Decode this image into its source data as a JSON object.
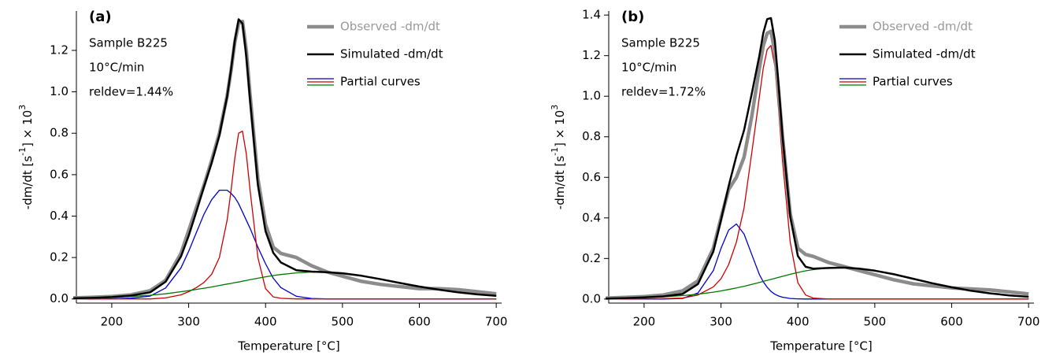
{
  "chart_data": [
    {
      "type": "line",
      "xlabel": "Temperature  [°C]",
      "ylabel": [
        "-dm/dt  [s",
        "-1",
        "]  × 10",
        "3"
      ],
      "annotations": [
        "(a)",
        "Sample B225",
        "10°C/min",
        "reldev=1.44%"
      ],
      "xlim": [
        154,
        707
      ],
      "xticks": [
        200,
        300,
        400,
        500,
        600,
        700
      ],
      "ylim": [
        -0.02,
        1.39
      ],
      "yticks": [
        {
          "value": 0,
          "label": "0.0"
        },
        {
          "value": 0.2,
          "label": "0.2"
        },
        {
          "value": 0.4,
          "label": "0.4"
        },
        {
          "value": 0.6,
          "label": "0.6"
        },
        {
          "value": 0.8,
          "label": "0.8"
        },
        {
          "value": 1.0,
          "label": "1.0"
        },
        {
          "value": 1.2,
          "label": "1.2"
        }
      ],
      "x": [
        150,
        175,
        200,
        225,
        250,
        270,
        290,
        300,
        310,
        320,
        330,
        340,
        350,
        355,
        360,
        365,
        370,
        375,
        380,
        390,
        400,
        410,
        420,
        440,
        460,
        480,
        500,
        525,
        550,
        575,
        600,
        625,
        650,
        675,
        700
      ],
      "series": [
        {
          "name": "Observed -dm/dt",
          "color": "#8c8c8c",
          "values": [
            0.005,
            0.008,
            0.012,
            0.02,
            0.04,
            0.09,
            0.22,
            0.33,
            0.44,
            0.55,
            0.67,
            0.8,
            0.98,
            1.1,
            1.24,
            1.33,
            1.34,
            1.2,
            0.98,
            0.58,
            0.36,
            0.25,
            0.22,
            0.2,
            0.16,
            0.13,
            0.11,
            0.085,
            0.07,
            0.06,
            0.05,
            0.05,
            0.045,
            0.035,
            0.025
          ]
        },
        {
          "name": "Simulated -dm/dt",
          "color": "#000000",
          "values": [
            0.003,
            0.005,
            0.009,
            0.016,
            0.032,
            0.083,
            0.205,
            0.305,
            0.421,
            0.542,
            0.658,
            0.79,
            0.977,
            1.105,
            1.249,
            1.35,
            1.33,
            1.169,
            0.953,
            0.55,
            0.327,
            0.223,
            0.176,
            0.139,
            0.132,
            0.129,
            0.124,
            0.112,
            0.095,
            0.077,
            0.06,
            0.045,
            0.032,
            0.022,
            0.015
          ]
        },
        {
          "name": "Partial curves",
          "components": [
            {
              "color": "#0000cc",
              "values": [
                0,
                0,
                0.001,
                0.004,
                0.014,
                0.053,
                0.15,
                0.23,
                0.32,
                0.41,
                0.48,
                0.525,
                0.525,
                0.51,
                0.49,
                0.46,
                0.42,
                0.38,
                0.34,
                0.25,
                0.17,
                0.1,
                0.055,
                0.013,
                0.002,
                0,
                0,
                0,
                0,
                0,
                0,
                0,
                0,
                0,
                0
              ]
            },
            {
              "color": "#cc0000",
              "values": [
                0,
                0,
                0,
                0,
                0,
                0.005,
                0.02,
                0.035,
                0.055,
                0.08,
                0.12,
                0.2,
                0.38,
                0.52,
                0.68,
                0.8,
                0.81,
                0.7,
                0.52,
                0.2,
                0.05,
                0.01,
                0.003,
                0,
                0,
                0,
                0,
                0,
                0,
                0,
                0,
                0,
                0,
                0,
                0
              ]
            },
            {
              "color": "#007700",
              "values": [
                0.003,
                0.005,
                0.008,
                0.012,
                0.018,
                0.025,
                0.035,
                0.04,
                0.046,
                0.052,
                0.058,
                0.065,
                0.072,
                0.075,
                0.079,
                0.082,
                0.086,
                0.089,
                0.093,
                0.1,
                0.107,
                0.113,
                0.118,
                0.126,
                0.13,
                0.129,
                0.124,
                0.112,
                0.095,
                0.077,
                0.06,
                0.045,
                0.032,
                0.022,
                0.015
              ]
            }
          ]
        }
      ]
    },
    {
      "type": "line",
      "xlabel": "Temperature  [°C]",
      "ylabel": [
        "-dm/dt  [s",
        "-1",
        "]  × 10",
        "3"
      ],
      "annotations": [
        "(b)",
        "Sample B225",
        "10°C/min",
        "reldev=1.72%"
      ],
      "xlim": [
        154,
        707
      ],
      "xticks": [
        200,
        300,
        400,
        500,
        600,
        700
      ],
      "ylim": [
        -0.02,
        1.42
      ],
      "yticks": [
        {
          "value": 0,
          "label": "0.0"
        },
        {
          "value": 0.2,
          "label": "0.2"
        },
        {
          "value": 0.4,
          "label": "0.4"
        },
        {
          "value": 0.6,
          "label": "0.6"
        },
        {
          "value": 0.8,
          "label": "0.8"
        },
        {
          "value": 1.0,
          "label": "1.0"
        },
        {
          "value": 1.2,
          "label": "1.2"
        },
        {
          "value": 1.4,
          "label": "1.4"
        }
      ],
      "x": [
        150,
        175,
        200,
        225,
        250,
        270,
        290,
        300,
        310,
        320,
        330,
        340,
        350,
        355,
        360,
        365,
        370,
        375,
        380,
        390,
        400,
        410,
        420,
        440,
        460,
        480,
        500,
        525,
        550,
        575,
        600,
        625,
        650,
        675,
        700
      ],
      "series": [
        {
          "name": "Observed -dm/dt",
          "color": "#8c8c8c",
          "values": [
            0.005,
            0.008,
            0.012,
            0.02,
            0.04,
            0.09,
            0.25,
            0.4,
            0.54,
            0.6,
            0.7,
            0.9,
            1.14,
            1.25,
            1.31,
            1.32,
            1.22,
            1.02,
            0.8,
            0.42,
            0.25,
            0.22,
            0.21,
            0.18,
            0.16,
            0.14,
            0.12,
            0.095,
            0.075,
            0.065,
            0.055,
            0.05,
            0.045,
            0.035,
            0.025
          ]
        },
        {
          "name": "Simulated -dm/dt",
          "color": "#000000",
          "values": [
            0.002,
            0.004,
            0.008,
            0.013,
            0.025,
            0.074,
            0.234,
            0.39,
            0.557,
            0.705,
            0.833,
            1.012,
            1.202,
            1.312,
            1.38,
            1.385,
            1.276,
            1.052,
            0.801,
            0.405,
            0.212,
            0.159,
            0.15,
            0.153,
            0.155,
            0.15,
            0.14,
            0.122,
            0.1,
            0.078,
            0.058,
            0.041,
            0.028,
            0.018,
            0.011
          ]
        },
        {
          "name": "Partial curves",
          "components": [
            {
              "color": "#0000cc",
              "values": [
                0,
                0,
                0,
                0,
                0.003,
                0.03,
                0.14,
                0.25,
                0.34,
                0.37,
                0.32,
                0.22,
                0.12,
                0.085,
                0.058,
                0.038,
                0.024,
                0.015,
                0.009,
                0.003,
                0.001,
                0,
                0,
                0,
                0,
                0,
                0,
                0,
                0,
                0,
                0,
                0,
                0,
                0,
                0
              ]
            },
            {
              "color": "#cc0000",
              "values": [
                0,
                0,
                0.001,
                0.002,
                0.005,
                0.02,
                0.06,
                0.1,
                0.17,
                0.28,
                0.45,
                0.72,
                1.0,
                1.14,
                1.23,
                1.25,
                1.15,
                0.93,
                0.68,
                0.28,
                0.08,
                0.02,
                0.005,
                0,
                0,
                0,
                0,
                0,
                0,
                0,
                0,
                0,
                0,
                0,
                0
              ]
            },
            {
              "color": "#007700",
              "values": [
                0.002,
                0.004,
                0.007,
                0.011,
                0.017,
                0.024,
                0.034,
                0.04,
                0.047,
                0.055,
                0.063,
                0.072,
                0.082,
                0.087,
                0.092,
                0.097,
                0.102,
                0.107,
                0.112,
                0.122,
                0.131,
                0.139,
                0.145,
                0.153,
                0.155,
                0.15,
                0.14,
                0.122,
                0.1,
                0.078,
                0.058,
                0.041,
                0.028,
                0.018,
                0.011
              ]
            }
          ]
        }
      ]
    }
  ]
}
